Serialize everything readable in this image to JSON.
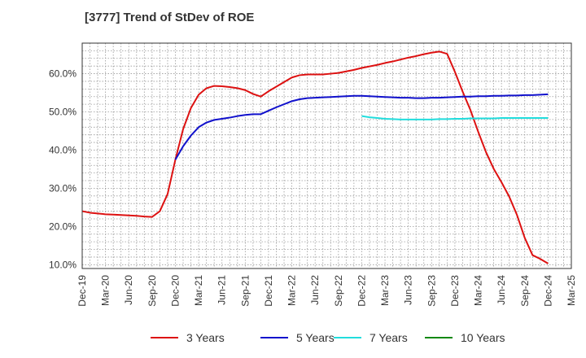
{
  "chart_data": {
    "type": "line",
    "title": "[3777]  Trend of StDev of ROE",
    "xlabel": "",
    "ylabel": "",
    "ylim": [
      9,
      68
    ],
    "yticks": [
      10,
      20,
      30,
      40,
      50,
      60
    ],
    "ytick_labels": [
      "10.0%",
      "20.0%",
      "30.0%",
      "40.0%",
      "50.0%",
      "60.0%"
    ],
    "xticks": [
      "Dec-19",
      "Mar-20",
      "Jun-20",
      "Sep-20",
      "Dec-20",
      "Mar-21",
      "Jun-21",
      "Sep-21",
      "Dec-21",
      "Mar-22",
      "Jun-22",
      "Sep-22",
      "Dec-22",
      "Mar-23",
      "Jun-23",
      "Sep-23",
      "Dec-23",
      "Mar-24",
      "Jun-24",
      "Sep-24",
      "Dec-24",
      "Mar-25"
    ],
    "grid": true,
    "legend_position": "bottom",
    "series": [
      {
        "name": "3 Years",
        "color": "#dd1111",
        "x": [
          "Dec-19",
          "Jan-20",
          "Feb-20",
          "Mar-20",
          "Apr-20",
          "May-20",
          "Jun-20",
          "Jul-20",
          "Aug-20",
          "Sep-20",
          "Oct-20",
          "Nov-20",
          "Dec-20",
          "Jan-21",
          "Feb-21",
          "Mar-21",
          "Apr-21",
          "May-21",
          "Jun-21",
          "Jul-21",
          "Aug-21",
          "Sep-21",
          "Oct-21",
          "Nov-21",
          "Dec-21",
          "Jan-22",
          "Feb-22",
          "Mar-22",
          "Apr-22",
          "May-22",
          "Jun-22",
          "Jul-22",
          "Aug-22",
          "Sep-22",
          "Oct-22",
          "Nov-22",
          "Dec-22",
          "Jan-23",
          "Feb-23",
          "Mar-23",
          "Apr-23",
          "May-23",
          "Jun-23",
          "Jul-23",
          "Aug-23",
          "Sep-23",
          "Oct-23",
          "Nov-23",
          "Dec-23",
          "Jan-24",
          "Feb-24",
          "Mar-24",
          "Apr-24",
          "May-24",
          "Jun-24",
          "Jul-24",
          "Aug-24",
          "Sep-24",
          "Oct-24",
          "Nov-24",
          "Dec-24"
        ],
        "values": [
          24.0,
          23.6,
          23.4,
          23.2,
          23.1,
          23.0,
          22.9,
          22.8,
          22.6,
          22.5,
          24.0,
          28.5,
          37.5,
          45.5,
          51.0,
          54.5,
          56.2,
          56.8,
          56.7,
          56.5,
          56.2,
          55.7,
          54.7,
          54.0,
          55.4,
          56.6,
          57.8,
          59.0,
          59.6,
          59.8,
          59.8,
          59.8,
          60.0,
          60.2,
          60.6,
          61.0,
          61.5,
          61.9,
          62.3,
          62.8,
          63.2,
          63.7,
          64.2,
          64.6,
          65.1,
          65.5,
          65.8,
          65.2,
          60.5,
          55.3,
          50.5,
          44.8,
          39.5,
          35.1,
          31.6,
          27.8,
          23.0,
          17.0,
          12.5,
          11.5,
          10.3
        ]
      },
      {
        "name": "5 Years",
        "color": "#1111cc",
        "x": [
          "Dec-20",
          "Jan-21",
          "Feb-21",
          "Mar-21",
          "Apr-21",
          "May-21",
          "Jun-21",
          "Jul-21",
          "Aug-21",
          "Sep-21",
          "Oct-21",
          "Nov-21",
          "Dec-21",
          "Jan-22",
          "Feb-22",
          "Mar-22",
          "Apr-22",
          "May-22",
          "Jun-22",
          "Jul-22",
          "Aug-22",
          "Sep-22",
          "Oct-22",
          "Nov-22",
          "Dec-22",
          "Jan-23",
          "Feb-23",
          "Mar-23",
          "Apr-23",
          "May-23",
          "Jun-23",
          "Jul-23",
          "Aug-23",
          "Sep-23",
          "Oct-23",
          "Nov-23",
          "Dec-23",
          "Jan-24",
          "Feb-24",
          "Mar-24",
          "Apr-24",
          "May-24",
          "Jun-24",
          "Jul-24",
          "Aug-24",
          "Sep-24",
          "Oct-24",
          "Nov-24",
          "Dec-24"
        ],
        "values": [
          37.5,
          41.0,
          43.8,
          46.0,
          47.2,
          47.9,
          48.2,
          48.5,
          48.9,
          49.2,
          49.4,
          49.4,
          50.3,
          51.2,
          52.0,
          52.8,
          53.3,
          53.6,
          53.7,
          53.8,
          53.9,
          54.0,
          54.1,
          54.2,
          54.2,
          54.1,
          54.0,
          53.9,
          53.8,
          53.7,
          53.7,
          53.6,
          53.6,
          53.7,
          53.7,
          53.8,
          53.9,
          54.0,
          54.0,
          54.1,
          54.1,
          54.2,
          54.2,
          54.3,
          54.3,
          54.4,
          54.4,
          54.5,
          54.6
        ]
      },
      {
        "name": "7 Years",
        "color": "#22dddd",
        "x": [
          "Dec-22",
          "Jan-23",
          "Feb-23",
          "Mar-23",
          "Apr-23",
          "May-23",
          "Jun-23",
          "Jul-23",
          "Aug-23",
          "Sep-23",
          "Oct-23",
          "Nov-23",
          "Dec-23",
          "Jan-24",
          "Feb-24",
          "Mar-24",
          "Apr-24",
          "May-24",
          "Jun-24",
          "Jul-24",
          "Aug-24",
          "Sep-24",
          "Oct-24",
          "Nov-24",
          "Dec-24"
        ],
        "values": [
          48.9,
          48.6,
          48.4,
          48.2,
          48.1,
          48.0,
          48.0,
          48.0,
          48.0,
          48.0,
          48.1,
          48.1,
          48.2,
          48.2,
          48.3,
          48.3,
          48.3,
          48.3,
          48.4,
          48.4,
          48.4,
          48.4,
          48.4,
          48.4,
          48.4
        ]
      },
      {
        "name": "10 Years",
        "color": "#118811",
        "x": [],
        "values": []
      }
    ]
  }
}
